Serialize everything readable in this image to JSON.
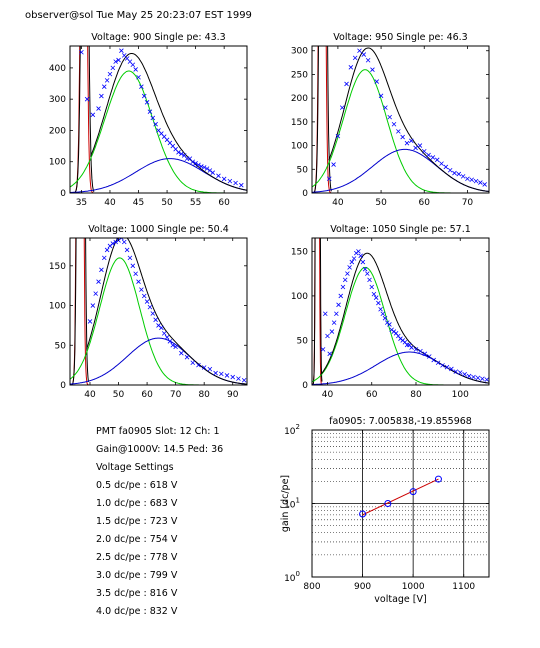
{
  "header": {
    "text": "observer@sol  Tue May 25 20:23:07 EST 1999"
  },
  "info": {
    "lines": [
      "PMT fa0905 Slot: 12 Ch: 1",
      "Gain@1000V: 14.5 Ped: 36",
      "Voltage Settings",
      "0.5 dc/pe : 618 V",
      "1.0 dc/pe : 683 V",
      "1.5 dc/pe : 723 V",
      "2.0 dc/pe : 754 V",
      "2.5 dc/pe : 778 V",
      "3.0 dc/pe : 799 V",
      "3.5 dc/pe : 816 V",
      "4.0 dc/pe : 832 V"
    ]
  },
  "colors": {
    "data": "#0000ff",
    "fit_total": "#000000",
    "single_pe": "#00cc00",
    "double_pe": "#0000cc",
    "pedestal": "#cc0000"
  },
  "chart_data": [
    {
      "type": "scatter",
      "title": "Voltage: 900 Single pe: 43.3",
      "xlim": [
        33,
        64
      ],
      "ylim": [
        0,
        470
      ],
      "xticks": [
        35,
        40,
        45,
        50,
        55,
        60
      ],
      "yticks": [
        0,
        100,
        200,
        300,
        400
      ],
      "series": [
        {
          "kind": "gauss",
          "color": "#00cc00",
          "mu": 43.3,
          "sigma": 4.2,
          "amp": 390
        },
        {
          "kind": "gauss",
          "color": "#0000cc",
          "mu": 50.5,
          "sigma": 6.0,
          "amp": 110
        },
        {
          "kind": "ped",
          "color": "#cc0000",
          "x0": 33.6,
          "x1": 37.2,
          "peak": 2000
        },
        {
          "kind": "markers",
          "color": "#0000ff",
          "x": [
            35,
            36,
            37,
            38,
            38.5,
            39,
            39.5,
            40,
            40.5,
            41,
            41.5,
            42,
            42.5,
            43,
            43.5,
            44,
            44.5,
            45,
            45.5,
            46,
            46.5,
            47,
            47.5,
            48,
            48.5,
            49,
            49.5,
            50,
            50.5,
            51,
            51.5,
            52,
            52.5,
            53,
            53.5,
            54,
            54.5,
            55,
            55.5,
            56,
            56.5,
            57,
            57.5,
            58,
            59,
            60,
            61,
            62,
            63
          ],
          "y": [
            450,
            300,
            250,
            270,
            310,
            340,
            360,
            380,
            400,
            420,
            425,
            455,
            440,
            430,
            420,
            410,
            395,
            370,
            340,
            310,
            290,
            260,
            240,
            220,
            200,
            190,
            180,
            170,
            160,
            150,
            140,
            130,
            125,
            120,
            110,
            110,
            100,
            95,
            90,
            85,
            82,
            78,
            72,
            65,
            55,
            45,
            38,
            32,
            25
          ]
        }
      ]
    },
    {
      "type": "scatter",
      "title": "Voltage: 950 Single pe: 46.3",
      "xlim": [
        34,
        75
      ],
      "ylim": [
        0,
        310
      ],
      "xticks": [
        40,
        50,
        60,
        70
      ],
      "yticks": [
        0,
        50,
        100,
        150,
        200,
        250,
        300
      ],
      "series": [
        {
          "kind": "gauss",
          "color": "#00cc00",
          "mu": 46.3,
          "sigma": 5.0,
          "amp": 260
        },
        {
          "kind": "gauss",
          "color": "#0000cc",
          "mu": 55.5,
          "sigma": 7.5,
          "amp": 92
        },
        {
          "kind": "ped",
          "color": "#cc0000",
          "x0": 34.2,
          "x1": 38.5,
          "peak": 2000
        },
        {
          "kind": "markers",
          "color": "#0000ff",
          "x": [
            38,
            39,
            40,
            41,
            42,
            43,
            44,
            45,
            46,
            47,
            48,
            49,
            50,
            51,
            52,
            53,
            54,
            55,
            56,
            57,
            58,
            59,
            60,
            61,
            62,
            63,
            64,
            65,
            66,
            67,
            68,
            69,
            70,
            71,
            72,
            73,
            74
          ],
          "y": [
            30,
            60,
            120,
            180,
            230,
            265,
            285,
            300,
            292,
            280,
            260,
            235,
            205,
            180,
            160,
            145,
            130,
            118,
            105,
            110,
            95,
            100,
            88,
            80,
            75,
            70,
            62,
            55,
            48,
            42,
            40,
            35,
            30,
            28,
            25,
            22,
            18
          ]
        }
      ]
    },
    {
      "type": "scatter",
      "title": "Voltage: 1000 Single pe: 50.4",
      "xlim": [
        33,
        95
      ],
      "ylim": [
        0,
        185
      ],
      "xticks": [
        40,
        50,
        60,
        70,
        80,
        90
      ],
      "yticks": [
        0,
        50,
        100,
        150
      ],
      "series": [
        {
          "kind": "gauss",
          "color": "#00cc00",
          "mu": 50.4,
          "sigma": 7.0,
          "amp": 160
        },
        {
          "kind": "gauss",
          "color": "#0000cc",
          "mu": 64.0,
          "sigma": 11.0,
          "amp": 59
        },
        {
          "kind": "ped",
          "color": "#cc0000",
          "x0": 33.5,
          "x1": 39.5,
          "peak": 2000
        },
        {
          "kind": "markers",
          "color": "#0000ff",
          "x": [
            40,
            41,
            42,
            43,
            44,
            45,
            46,
            47,
            48,
            49,
            50,
            51,
            52,
            53,
            54,
            55,
            56,
            57,
            58,
            59,
            60,
            61,
            62,
            63,
            64,
            65,
            66,
            67,
            68,
            69,
            70,
            72,
            74,
            76,
            78,
            80,
            82,
            84,
            86,
            88,
            90,
            92,
            94
          ],
          "y": [
            80,
            100,
            115,
            130,
            145,
            160,
            170,
            175,
            178,
            180,
            182,
            185,
            180,
            170,
            160,
            150,
            140,
            130,
            120,
            112,
            105,
            98,
            90,
            82,
            75,
            72,
            65,
            60,
            55,
            50,
            48,
            40,
            35,
            28,
            25,
            22,
            20,
            15,
            14,
            12,
            10,
            8,
            6
          ]
        }
      ]
    },
    {
      "type": "scatter",
      "title": "Voltage: 1050 Single pe: 57.1",
      "xlim": [
        33,
        113
      ],
      "ylim": [
        0,
        165
      ],
      "xticks": [
        40,
        60,
        80,
        100
      ],
      "yticks": [
        0,
        50,
        100,
        150
      ],
      "series": [
        {
          "kind": "gauss",
          "color": "#00cc00",
          "mu": 57.1,
          "sigma": 9.0,
          "amp": 132
        },
        {
          "kind": "gauss",
          "color": "#0000cc",
          "mu": 77.0,
          "sigma": 15.0,
          "amp": 37
        },
        {
          "kind": "ped",
          "color": "#cc0000",
          "x0": 33.3,
          "x1": 37.5,
          "peak": 2000
        },
        {
          "kind": "markers",
          "color": "#0000ff",
          "x": [
            38,
            39,
            40,
            41,
            42,
            43,
            44,
            45,
            46,
            47,
            48,
            49,
            50,
            51,
            52,
            53,
            54,
            55,
            56,
            57,
            58,
            59,
            60,
            61,
            62,
            63,
            64,
            65,
            66,
            67,
            68,
            69,
            70,
            71,
            72,
            73,
            74,
            75,
            76,
            77,
            78,
            80,
            82,
            84,
            86,
            88,
            90,
            92,
            94,
            96,
            98,
            100,
            102,
            104,
            106,
            108,
            110,
            112
          ],
          "y": [
            40,
            80,
            55,
            35,
            60,
            70,
            80,
            90,
            100,
            110,
            118,
            125,
            132,
            138,
            142,
            148,
            150,
            145,
            138,
            130,
            125,
            118,
            110,
            102,
            98,
            92,
            85,
            80,
            75,
            70,
            68,
            62,
            60,
            58,
            55,
            52,
            50,
            48,
            45,
            45,
            42,
            40,
            38,
            35,
            32,
            28,
            25,
            22,
            20,
            18,
            15,
            14,
            12,
            10,
            9,
            8,
            7,
            6
          ]
        }
      ]
    },
    {
      "type": "scatter",
      "title": "fa0905: 7.005838,-19.855968",
      "xlabel": "voltage [V]",
      "ylabel": "gain [dc/pe]",
      "xlim": [
        800,
        1150
      ],
      "ylim": [
        1,
        100
      ],
      "yscale": "log",
      "xticks": [
        800,
        900,
        1000,
        1100
      ],
      "yticks": [
        {
          "value": 1,
          "base": "10",
          "exp": "0"
        },
        {
          "value": 10,
          "base": "10",
          "exp": "1"
        },
        {
          "value": 100,
          "base": "10",
          "exp": "2"
        }
      ],
      "grid": true,
      "series": [
        {
          "kind": "fitline",
          "color": "#cc0000",
          "x": [
            900,
            1050
          ],
          "y": [
            7.0,
            21.5
          ]
        },
        {
          "kind": "circles",
          "color": "#0000ff",
          "x": [
            900,
            950,
            1000,
            1050
          ],
          "y": [
            7.2,
            10.0,
            14.5,
            21.5
          ]
        }
      ]
    }
  ]
}
